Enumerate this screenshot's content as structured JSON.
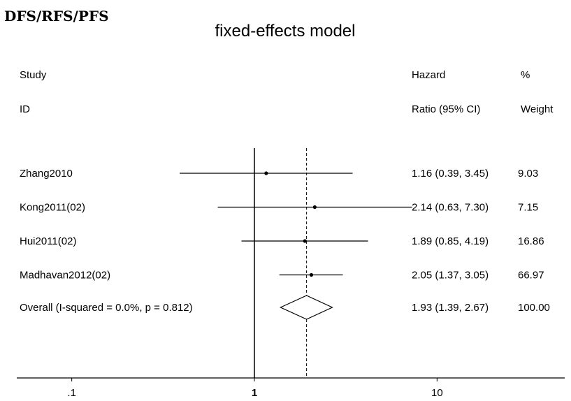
{
  "panel_label": "DFS/RFS/PFS",
  "chart_data": {
    "type": "forest",
    "title": "fixed-effects model",
    "x_scale": "log",
    "xlim": [
      0.05,
      50
    ],
    "reference_line": 1,
    "pooled_line": 1.93,
    "x_ticks": [
      {
        "value": 0.1,
        "label": ".1"
      },
      {
        "value": 1,
        "label": "1"
      },
      {
        "value": 10,
        "label": "10"
      }
    ],
    "headers": {
      "study_line1": "Study",
      "study_line2": "ID",
      "hr_line1": "Hazard",
      "hr_line2": "Ratio (95% CI)",
      "weight_line1": "%",
      "weight_line2": "Weight"
    },
    "studies": [
      {
        "id": "Zhang2010",
        "hr": 1.16,
        "lo": 0.39,
        "hi": 3.45,
        "hr_text": "1.16 (0.39, 3.45)",
        "weight": "9.03"
      },
      {
        "id": "Kong2011(02)",
        "hr": 2.14,
        "lo": 0.63,
        "hi": 7.3,
        "hr_text": "2.14 (0.63, 7.30)",
        "weight": "7.15"
      },
      {
        "id": "Hui2011(02)",
        "hr": 1.89,
        "lo": 0.85,
        "hi": 4.19,
        "hr_text": "1.89 (0.85, 4.19)",
        "weight": "16.86"
      },
      {
        "id": "Madhavan2012(02)",
        "hr": 2.05,
        "lo": 1.37,
        "hi": 3.05,
        "hr_text": "2.05 (1.37, 3.05)",
        "weight": "66.97"
      }
    ],
    "overall": {
      "label": "Overall  (I-squared = 0.0%, p = 0.812)",
      "hr": 1.93,
      "lo": 1.39,
      "hi": 2.67,
      "hr_text": "1.93 (1.39, 2.67)",
      "weight": "100.00"
    }
  }
}
